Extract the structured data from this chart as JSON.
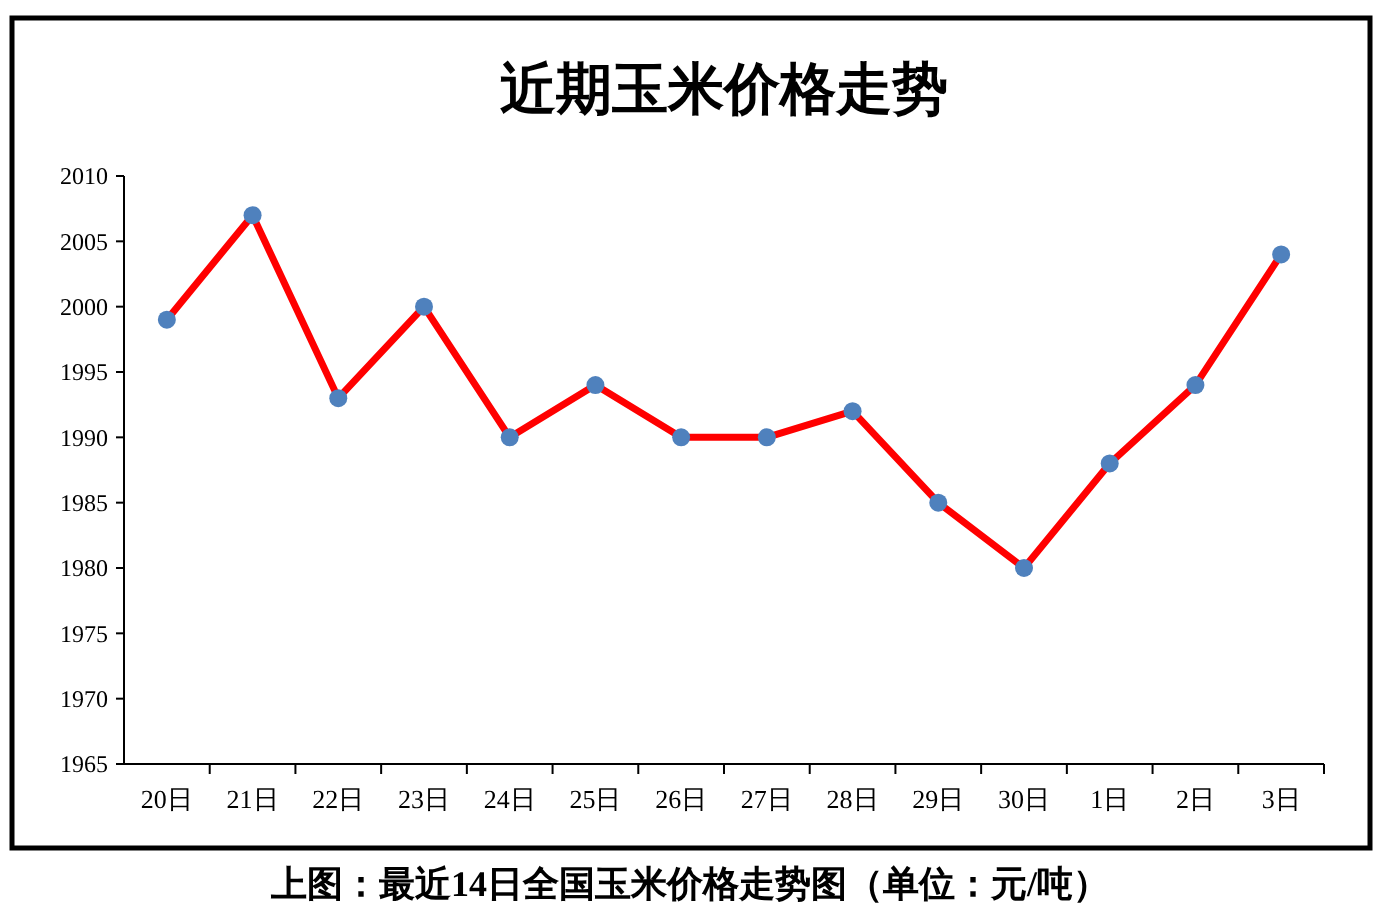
{
  "chart_data": {
    "type": "line",
    "title": "近期玉米价格走势",
    "categories": [
      "20日",
      "21日",
      "22日",
      "23日",
      "24日",
      "25日",
      "26日",
      "27日",
      "28日",
      "29日",
      "30日",
      "1日",
      "2日",
      "3日"
    ],
    "series": [
      {
        "color": "#ff0000",
        "values": [
          1999,
          2007,
          1993,
          2000,
          1990,
          1994,
          1990,
          1990,
          1992,
          1985,
          1980,
          1988,
          1994,
          2004
        ]
      }
    ],
    "ylim": [
      1965,
      2010
    ],
    "yticks": [
      1965,
      1970,
      1975,
      1980,
      1985,
      1990,
      1995,
      2000,
      2005,
      2010
    ],
    "grid": false,
    "marker": "circle",
    "line_style": "solid",
    "annotations": [
      "上图：最近14日全国玉米价格走势图（单位：元/吨）"
    ]
  }
}
